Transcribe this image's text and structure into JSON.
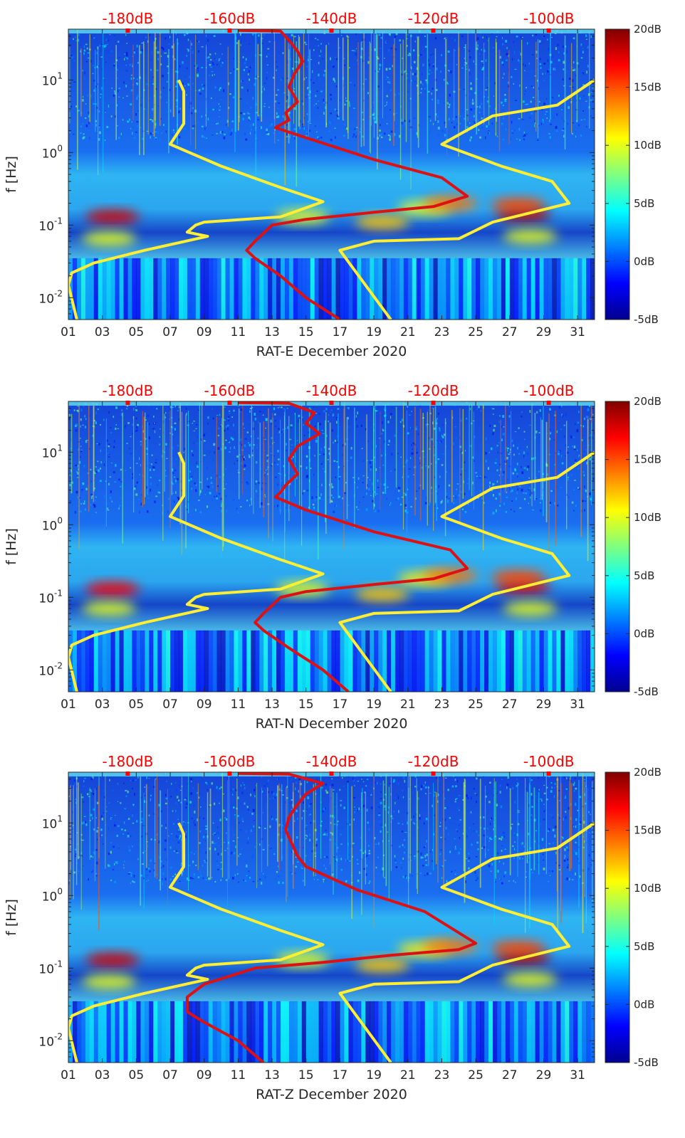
{
  "chart_data": [
    {
      "type": "heatmap",
      "xlabel": "RAT-E December 2020",
      "ylabel": "f [Hz]",
      "x_tick_labels": [
        "01",
        "03",
        "05",
        "07",
        "09",
        "11",
        "13",
        "15",
        "17",
        "19",
        "21",
        "23",
        "25",
        "27",
        "29",
        "31"
      ],
      "x_ticks_day": [
        1,
        3,
        5,
        7,
        9,
        11,
        13,
        15,
        17,
        19,
        21,
        23,
        25,
        27,
        29,
        31
      ],
      "xlim": [
        1,
        32
      ],
      "ylim": [
        0.005,
        50
      ],
      "yscale": "log",
      "y_ticks": [
        0.01,
        0.1,
        1,
        10
      ],
      "y_tick_labels": [
        {
          "base": "10",
          "exp": "-2"
        },
        {
          "base": "10",
          "exp": "-1"
        },
        {
          "base": "10",
          "exp": "0"
        },
        {
          "base": "10",
          "exp": "1"
        }
      ],
      "top_labels": [
        "-180dB",
        "-160dB",
        "-140dB",
        "-120dB",
        "-100dB"
      ],
      "top_positions_day": [
        4.5,
        10.5,
        16.5,
        22.5,
        29.3
      ],
      "colorbar": {
        "labels": [
          "20dB",
          "15dB",
          "10dB",
          "5dB",
          "0dB",
          "-5dB"
        ],
        "values": [
          20,
          15,
          10,
          5,
          0,
          -5
        ],
        "range": [
          -5,
          20
        ]
      },
      "hotspots": [
        {
          "day": 3.6,
          "f": 0.13,
          "value": 18
        },
        {
          "day": 3.4,
          "f": 0.065,
          "value": 10
        },
        {
          "day": 22.0,
          "f": 0.17,
          "value": 10
        },
        {
          "day": 23.5,
          "f": 0.2,
          "value": 14
        },
        {
          "day": 27.8,
          "f": 0.14,
          "value": 19
        },
        {
          "day": 27.5,
          "f": 0.19,
          "value": 15
        },
        {
          "day": 28.2,
          "f": 0.07,
          "value": 10
        },
        {
          "day": 14.8,
          "f": 0.13,
          "value": 10
        },
        {
          "day": 19.5,
          "f": 0.11,
          "value": 12
        }
      ],
      "series": [
        {
          "color": "#ffee33",
          "x": [
            7.5,
            7.8,
            7.8,
            7.0,
            10.0,
            13.5,
            16.0,
            13.5,
            9.0,
            8.5,
            8.0,
            9.2,
            5.5,
            2.5,
            1.2,
            1.0,
            1.5
          ],
          "y": [
            10,
            7,
            2.5,
            1.3,
            0.65,
            0.33,
            0.21,
            0.13,
            0.11,
            0.1,
            0.08,
            0.07,
            0.045,
            0.03,
            0.022,
            0.015,
            0.005
          ]
        },
        {
          "color": "#ffee33",
          "x": [
            20.0,
            17.0,
            17.0,
            19.0,
            24.0,
            26.0,
            30.5,
            29.5,
            26.5,
            23.0,
            26.0,
            29.8,
            32.0
          ],
          "y": [
            0.005,
            0.045,
            0.045,
            0.06,
            0.065,
            0.11,
            0.2,
            0.4,
            0.65,
            1.3,
            3.2,
            4.5,
            10
          ]
        },
        {
          "color": "#dd1111",
          "x": [
            11.0,
            13.5,
            14.0,
            14.5,
            14.8,
            14.3,
            14.0,
            14.5,
            13.8,
            14.0,
            13.2,
            15.0,
            19.0,
            23.0,
            24.5,
            22.5,
            19.0,
            15.0,
            13.0,
            12.0,
            11.5,
            12.0,
            13.5,
            15.0,
            17.0
          ],
          "y": [
            48,
            47,
            35,
            25,
            18,
            12,
            8,
            5,
            3.5,
            2.8,
            2.2,
            1.6,
            0.8,
            0.45,
            0.25,
            0.18,
            0.15,
            0.12,
            0.1,
            0.06,
            0.045,
            0.035,
            0.02,
            0.01,
            0.005
          ]
        }
      ]
    },
    {
      "type": "heatmap",
      "xlabel": "RAT-N December 2020",
      "ylabel": "f [Hz]",
      "x_tick_labels": [
        "01",
        "03",
        "05",
        "07",
        "09",
        "11",
        "13",
        "15",
        "17",
        "19",
        "21",
        "23",
        "25",
        "27",
        "29",
        "31"
      ],
      "x_ticks_day": [
        1,
        3,
        5,
        7,
        9,
        11,
        13,
        15,
        17,
        19,
        21,
        23,
        25,
        27,
        29,
        31
      ],
      "xlim": [
        1,
        32
      ],
      "ylim": [
        0.005,
        50
      ],
      "yscale": "log",
      "y_ticks": [
        0.01,
        0.1,
        1,
        10
      ],
      "y_tick_labels": [
        {
          "base": "10",
          "exp": "-2"
        },
        {
          "base": "10",
          "exp": "-1"
        },
        {
          "base": "10",
          "exp": "0"
        },
        {
          "base": "10",
          "exp": "1"
        }
      ],
      "top_labels": [
        "-180dB",
        "-160dB",
        "-140dB",
        "-120dB",
        "-100dB"
      ],
      "top_positions_day": [
        4.5,
        10.5,
        16.5,
        22.5,
        29.3
      ],
      "colorbar": {
        "labels": [
          "20dB",
          "15dB",
          "10dB",
          "5dB",
          "0dB",
          "-5dB"
        ],
        "values": [
          20,
          15,
          10,
          5,
          0,
          -5
        ],
        "range": [
          -5,
          20
        ]
      },
      "hotspots": [
        {
          "day": 3.6,
          "f": 0.13,
          "value": 17
        },
        {
          "day": 3.4,
          "f": 0.07,
          "value": 10
        },
        {
          "day": 22.0,
          "f": 0.18,
          "value": 11
        },
        {
          "day": 23.5,
          "f": 0.2,
          "value": 14
        },
        {
          "day": 27.8,
          "f": 0.14,
          "value": 18
        },
        {
          "day": 27.5,
          "f": 0.19,
          "value": 15
        },
        {
          "day": 28.2,
          "f": 0.07,
          "value": 10
        },
        {
          "day": 14.8,
          "f": 0.13,
          "value": 10
        },
        {
          "day": 19.5,
          "f": 0.11,
          "value": 12
        }
      ],
      "series": [
        {
          "color": "#ffee33",
          "x": [
            7.5,
            7.8,
            7.8,
            7.0,
            10.0,
            13.5,
            16.0,
            13.5,
            9.0,
            8.5,
            8.0,
            9.2,
            5.5,
            2.5,
            1.2,
            1.0,
            1.5
          ],
          "y": [
            10,
            7,
            2.5,
            1.3,
            0.65,
            0.33,
            0.21,
            0.13,
            0.11,
            0.1,
            0.08,
            0.07,
            0.045,
            0.03,
            0.022,
            0.015,
            0.005
          ]
        },
        {
          "color": "#ffee33",
          "x": [
            20.0,
            17.0,
            17.0,
            19.0,
            24.0,
            26.0,
            30.5,
            29.5,
            26.5,
            23.0,
            26.0,
            29.8,
            32.0
          ],
          "y": [
            0.005,
            0.045,
            0.045,
            0.06,
            0.065,
            0.11,
            0.2,
            0.4,
            0.65,
            1.3,
            3.2,
            4.5,
            10
          ]
        },
        {
          "color": "#dd1111",
          "x": [
            11.0,
            14.0,
            15.5,
            15.0,
            15.8,
            14.5,
            14.0,
            14.5,
            13.8,
            13.5,
            13.2,
            15.0,
            19.0,
            23.5,
            24.5,
            22.5,
            19.0,
            15.0,
            13.5,
            12.5,
            12.0,
            12.5,
            14.0,
            16.0,
            17.5
          ],
          "y": [
            48,
            47,
            35,
            25,
            18,
            12,
            8,
            5,
            3.5,
            2.8,
            2.4,
            1.6,
            0.8,
            0.45,
            0.25,
            0.18,
            0.15,
            0.12,
            0.1,
            0.06,
            0.045,
            0.035,
            0.02,
            0.01,
            0.005
          ]
        }
      ]
    },
    {
      "type": "heatmap",
      "xlabel": "RAT-Z December 2020",
      "ylabel": "f [Hz]",
      "x_tick_labels": [
        "01",
        "03",
        "05",
        "07",
        "09",
        "11",
        "13",
        "15",
        "17",
        "19",
        "21",
        "23",
        "25",
        "27",
        "29",
        "31"
      ],
      "x_ticks_day": [
        1,
        3,
        5,
        7,
        9,
        11,
        13,
        15,
        17,
        19,
        21,
        23,
        25,
        27,
        29,
        31
      ],
      "xlim": [
        1,
        32
      ],
      "ylim": [
        0.005,
        50
      ],
      "yscale": "log",
      "y_ticks": [
        0.01,
        0.1,
        1,
        10
      ],
      "y_tick_labels": [
        {
          "base": "10",
          "exp": "-2"
        },
        {
          "base": "10",
          "exp": "-1"
        },
        {
          "base": "10",
          "exp": "0"
        },
        {
          "base": "10",
          "exp": "1"
        }
      ],
      "top_labels": [
        "-180dB",
        "-160dB",
        "-140dB",
        "-120dB",
        "-100dB"
      ],
      "top_positions_day": [
        4.5,
        10.5,
        16.5,
        22.5,
        29.3
      ],
      "colorbar": {
        "labels": [
          "20dB",
          "15dB",
          "10dB",
          "5dB",
          "0dB",
          "-5dB"
        ],
        "values": [
          20,
          15,
          10,
          5,
          0,
          -5
        ],
        "range": [
          -5,
          20
        ]
      },
      "hotspots": [
        {
          "day": 3.6,
          "f": 0.13,
          "value": 18
        },
        {
          "day": 3.4,
          "f": 0.065,
          "value": 10
        },
        {
          "day": 22.0,
          "f": 0.18,
          "value": 11
        },
        {
          "day": 23.5,
          "f": 0.2,
          "value": 14
        },
        {
          "day": 27.8,
          "f": 0.14,
          "value": 19
        },
        {
          "day": 27.5,
          "f": 0.19,
          "value": 15
        },
        {
          "day": 28.2,
          "f": 0.07,
          "value": 10
        },
        {
          "day": 14.8,
          "f": 0.13,
          "value": 10
        },
        {
          "day": 19.5,
          "f": 0.11,
          "value": 12
        }
      ],
      "series": [
        {
          "color": "#ffee33",
          "x": [
            7.5,
            7.8,
            7.8,
            7.0,
            10.0,
            13.5,
            16.0,
            13.5,
            9.0,
            8.5,
            8.0,
            9.2,
            5.5,
            2.5,
            1.2,
            1.0,
            1.5
          ],
          "y": [
            10,
            7,
            2.5,
            1.3,
            0.65,
            0.33,
            0.21,
            0.13,
            0.11,
            0.1,
            0.08,
            0.07,
            0.045,
            0.03,
            0.022,
            0.015,
            0.005
          ]
        },
        {
          "color": "#ffee33",
          "x": [
            20.0,
            17.0,
            17.0,
            19.0,
            24.0,
            26.0,
            30.5,
            29.5,
            26.5,
            23.0,
            26.0,
            29.8,
            32.0
          ],
          "y": [
            0.005,
            0.045,
            0.045,
            0.06,
            0.065,
            0.11,
            0.2,
            0.4,
            0.65,
            1.3,
            3.2,
            4.5,
            10
          ]
        },
        {
          "color": "#dd1111",
          "x": [
            11.0,
            14.0,
            16.0,
            15.0,
            14.5,
            14.0,
            13.8,
            14.2,
            14.5,
            15.0,
            18.0,
            22.0,
            25.0,
            24.0,
            20.0,
            16.0,
            12.0,
            9.0,
            8.0,
            8.0,
            9.0,
            11.0,
            12.5
          ],
          "y": [
            48,
            47,
            35,
            25,
            18,
            12,
            8,
            5,
            3.5,
            2.5,
            1.2,
            0.6,
            0.22,
            0.18,
            0.15,
            0.12,
            0.1,
            0.06,
            0.04,
            0.025,
            0.018,
            0.01,
            0.005
          ]
        }
      ]
    }
  ]
}
